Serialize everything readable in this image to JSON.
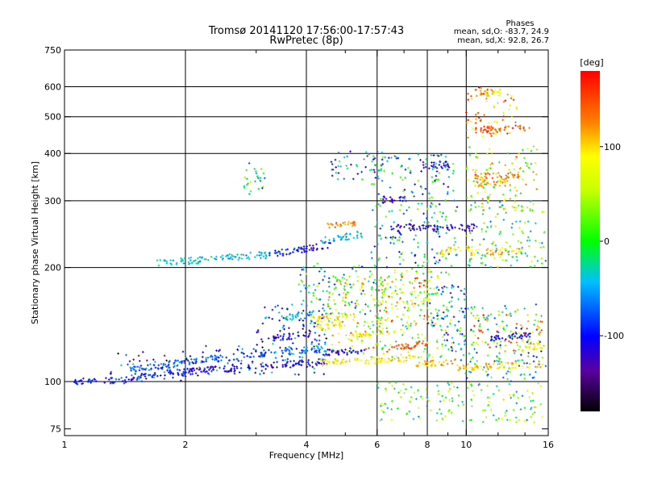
{
  "title": {
    "line1": "Tromsø 20141120 17:56:00-17:57:43",
    "line2": "RwPretec (8p)"
  },
  "stats": {
    "heading": "Phases",
    "o_mode": "mean, sd,O: -83.7, 24.9",
    "x_mode": "mean, sd,X:  92.8, 26.7"
  },
  "colorbar": {
    "label": "[deg]",
    "range": [
      -180,
      180
    ],
    "ticks": [
      {
        "value": 100,
        "label": "100"
      },
      {
        "value": 0,
        "label": "0"
      },
      {
        "value": -100,
        "label": "-100"
      }
    ]
  },
  "chart_data": {
    "type": "scatter",
    "xlabel": "Frequency [MHz]",
    "ylabel": "Stationary phase Virtual Height [km]",
    "xscale": "log",
    "yscale": "log",
    "xlim": [
      1,
      16
    ],
    "ylim": [
      72,
      750
    ],
    "xticks": [
      {
        "value": 1,
        "label": "1"
      },
      {
        "value": 2,
        "label": "2"
      },
      {
        "value": 4,
        "label": "4"
      },
      {
        "value": 6,
        "label": "6"
      },
      {
        "value": 8,
        "label": "8"
      },
      {
        "value": 10,
        "label": "10"
      },
      {
        "value": 16,
        "label": "16"
      }
    ],
    "xminor": [
      3,
      5,
      7,
      9,
      12,
      14
    ],
    "yticks": [
      {
        "value": 75,
        "label": "75"
      },
      {
        "value": 100,
        "label": "100"
      },
      {
        "value": 200,
        "label": "200"
      },
      {
        "value": 300,
        "label": "300"
      },
      {
        "value": 400,
        "label": "400"
      },
      {
        "value": 500,
        "label": "500"
      },
      {
        "value": 600,
        "label": "600"
      },
      {
        "value": 750,
        "label": "750"
      }
    ],
    "grid_x": [
      2,
      4,
      6,
      8,
      10
    ],
    "grid_y": [
      100,
      200,
      300,
      400,
      500,
      600
    ],
    "color_meaning": "phase [deg]",
    "traces": [
      {
        "f": [
          1.05,
          1.5
        ],
        "h": [
          100,
          101
        ],
        "phase": -100
      },
      {
        "f": [
          1.5,
          2.0
        ],
        "h": [
          103,
          106
        ],
        "phase": -95
      },
      {
        "f": [
          2.0,
          3.2
        ],
        "h": [
          106,
          110
        ],
        "phase": -105
      },
      {
        "f": [
          3.2,
          4.5
        ],
        "h": [
          110,
          113
        ],
        "phase": -110
      },
      {
        "f": [
          1.45,
          2.2
        ],
        "h": [
          107,
          114
        ],
        "phase": -75
      },
      {
        "f": [
          2.2,
          3.2
        ],
        "h": [
          114,
          119
        ],
        "phase": -80
      },
      {
        "f": [
          3.2,
          4.4
        ],
        "h": [
          119,
          122
        ],
        "phase": -65
      },
      {
        "f": [
          4.4,
          5.6
        ],
        "h": [
          119,
          121
        ],
        "phase": -105
      },
      {
        "f": [
          4.3,
          6.2
        ],
        "h": [
          112,
          114
        ],
        "phase": 90
      },
      {
        "f": [
          6.0,
          7.5
        ],
        "h": [
          114,
          116
        ],
        "phase": 95
      },
      {
        "f": [
          7.5,
          9.5
        ],
        "h": [
          111,
          113
        ],
        "phase": 115
      },
      {
        "f": [
          9.5,
          15.5
        ],
        "h": [
          109,
          111
        ],
        "phase": 105
      },
      {
        "f": [
          6.3,
          8.0
        ],
        "h": [
          122,
          126
        ],
        "phase": 145
      },
      {
        "f": [
          3.3,
          4.1
        ],
        "h": [
          130,
          134
        ],
        "phase": -115
      },
      {
        "f": [
          3.5,
          4.2
        ],
        "h": [
          147,
          151
        ],
        "phase": -40
      },
      {
        "f": [
          4.1,
          5.3
        ],
        "h": [
          146,
          150
        ],
        "phase": 95
      },
      {
        "f": [
          4.2,
          5.0
        ],
        "h": [
          138,
          142
        ],
        "phase": 85
      },
      {
        "f": [
          5.0,
          6.0
        ],
        "h": [
          130,
          134
        ],
        "phase": 95
      },
      {
        "f": [
          1.7,
          2.4
        ],
        "h": [
          206,
          210
        ],
        "phase": -40
      },
      {
        "f": [
          2.4,
          3.2
        ],
        "h": [
          212,
          216
        ],
        "phase": -45
      },
      {
        "f": [
          3.2,
          4.0
        ],
        "h": [
          217,
          222
        ],
        "phase": -95
      },
      {
        "f": [
          3.8,
          4.6
        ],
        "h": [
          223,
          230
        ],
        "phase": -110
      },
      {
        "f": [
          4.3,
          5.5
        ],
        "h": [
          235,
          245
        ],
        "phase": -45
      },
      {
        "f": [
          4.5,
          5.3
        ],
        "h": [
          256,
          262
        ],
        "phase": 125
      },
      {
        "f": [
          6.5,
          8.2
        ],
        "h": [
          254,
          256
        ],
        "phase": -115
      },
      {
        "f": [
          8.2,
          10.5
        ],
        "h": [
          253,
          255
        ],
        "phase": -120
      },
      {
        "f": [
          6.2,
          7.1
        ],
        "h": [
          302,
          304
        ],
        "phase": -120
      },
      {
        "f": [
          7.8,
          9.1
        ],
        "h": [
          372,
          374
        ],
        "phase": -115
      },
      {
        "f": [
          10.2,
          13.8
        ],
        "h": [
          219,
          222
        ],
        "phase": 110
      },
      {
        "f": [
          8.5,
          10.2
        ],
        "h": [
          220,
          223
        ],
        "phase": 100
      },
      {
        "f": [
          10.5,
          14.5
        ],
        "h": [
          462,
          468
        ],
        "phase": 140
      },
      {
        "f": [
          10.5,
          13.5
        ],
        "h": [
          347,
          351
        ],
        "phase": 130
      },
      {
        "f": [
          10.5,
          13.0
        ],
        "h": [
          332,
          336
        ],
        "phase": 115
      },
      {
        "f": [
          10.8,
          12.2
        ],
        "h": [
          576,
          580
        ],
        "phase": 110
      },
      {
        "f": [
          11.5,
          14.5
        ],
        "h": [
          130,
          133
        ],
        "phase": -110
      },
      {
        "f": [
          14.0,
          15.5
        ],
        "h": [
          123,
          125
        ],
        "phase": 90
      }
    ],
    "scatter_clusters": [
      {
        "f": [
          1.3,
          2.2
        ],
        "h": [
          100,
          120
        ],
        "phase": -100
      },
      {
        "f": [
          2.2,
          4.5
        ],
        "h": [
          104,
          125
        ],
        "phase": -90
      },
      {
        "f": [
          3.0,
          4.6
        ],
        "h": [
          125,
          160
        ],
        "phase": -100
      },
      {
        "f": [
          3.8,
          6.0
        ],
        "h": [
          150,
          205
        ],
        "phase": -20
      },
      {
        "f": [
          4.5,
          6.5
        ],
        "h": [
          118,
          190
        ],
        "phase": 80
      },
      {
        "f": [
          5.8,
          9.2
        ],
        "h": [
          115,
          200
        ],
        "phase": 30
      },
      {
        "f": [
          5.8,
          9.5
        ],
        "h": [
          200,
          400
        ],
        "phase": -40
      },
      {
        "f": [
          6.0,
          8.2
        ],
        "h": [
          140,
          190
        ],
        "phase": 100
      },
      {
        "f": [
          8.0,
          10.0
        ],
        "h": [
          120,
          180
        ],
        "phase": -60
      },
      {
        "f": [
          9.5,
          15.8
        ],
        "h": [
          100,
          160
        ],
        "phase": -30
      },
      {
        "f": [
          10.0,
          15.5
        ],
        "h": [
          120,
          150
        ],
        "phase": 100
      },
      {
        "f": [
          10.0,
          15.8
        ],
        "h": [
          200,
          300
        ],
        "phase": 0
      },
      {
        "f": [
          10.0,
          15.0
        ],
        "h": [
          280,
          420
        ],
        "phase": 60
      },
      {
        "f": [
          10.0,
          13.5
        ],
        "h": [
          440,
          600
        ],
        "phase": 130
      },
      {
        "f": [
          6.0,
          15.5
        ],
        "h": [
          78,
          100
        ],
        "phase": 10
      },
      {
        "f": [
          2.8,
          3.2
        ],
        "h": [
          310,
          380
        ],
        "phase": -20
      },
      {
        "f": [
          4.6,
          6.2
        ],
        "h": [
          340,
          410
        ],
        "phase": -60
      }
    ]
  }
}
